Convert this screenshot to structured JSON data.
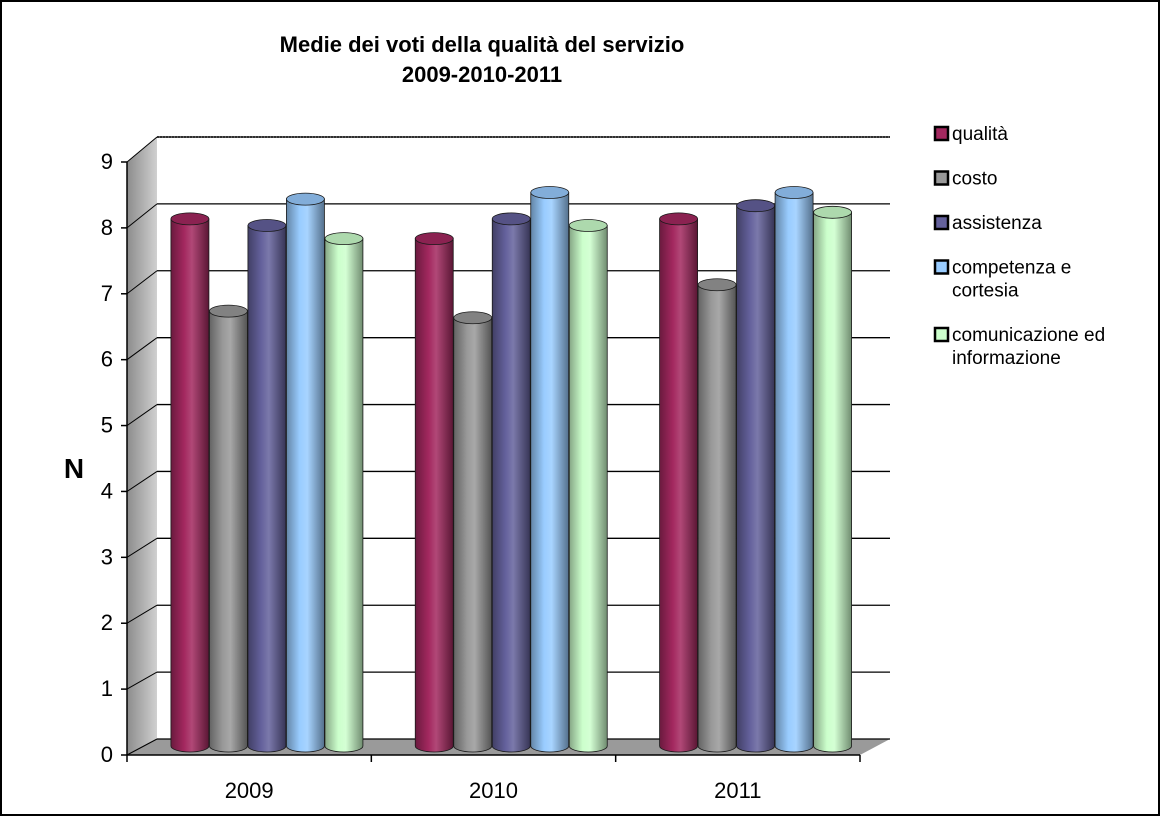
{
  "chart_data": {
    "type": "bar",
    "title_lines": [
      "Medie dei voti della qualità del servizio",
      "2009-2010-2011"
    ],
    "xlabel": "",
    "ylabel": "N",
    "categories": [
      "2009",
      "2010",
      "2011"
    ],
    "ylim": [
      0,
      9
    ],
    "yticks": [
      "0",
      "1",
      "2",
      "3",
      "4",
      "5",
      "6",
      "7",
      "8",
      "9"
    ],
    "grid": true,
    "legend_position": "right",
    "style": "3d-cylinder",
    "series": [
      {
        "name": "qualità",
        "color": "#a3285f",
        "values": [
          8.0,
          7.7,
          8.0
        ]
      },
      {
        "name": "costo",
        "color": "#999999",
        "values": [
          6.6,
          6.5,
          7.0
        ]
      },
      {
        "name": "assistenza",
        "color": "#64619c",
        "values": [
          7.9,
          8.0,
          8.2
        ]
      },
      {
        "name": "competenza e cortesia",
        "color": "#99ccff",
        "values": [
          8.3,
          8.4,
          8.4
        ]
      },
      {
        "name": "comunicazione ed informazione",
        "color": "#ccffcc",
        "values": [
          7.7,
          7.9,
          8.1
        ]
      }
    ],
    "legend_lines": [
      [
        "qualità"
      ],
      [
        "costo"
      ],
      [
        "assistenza"
      ],
      [
        "competenza e",
        "cortesia"
      ],
      [
        "comunicazione ed",
        "informazione"
      ]
    ]
  }
}
